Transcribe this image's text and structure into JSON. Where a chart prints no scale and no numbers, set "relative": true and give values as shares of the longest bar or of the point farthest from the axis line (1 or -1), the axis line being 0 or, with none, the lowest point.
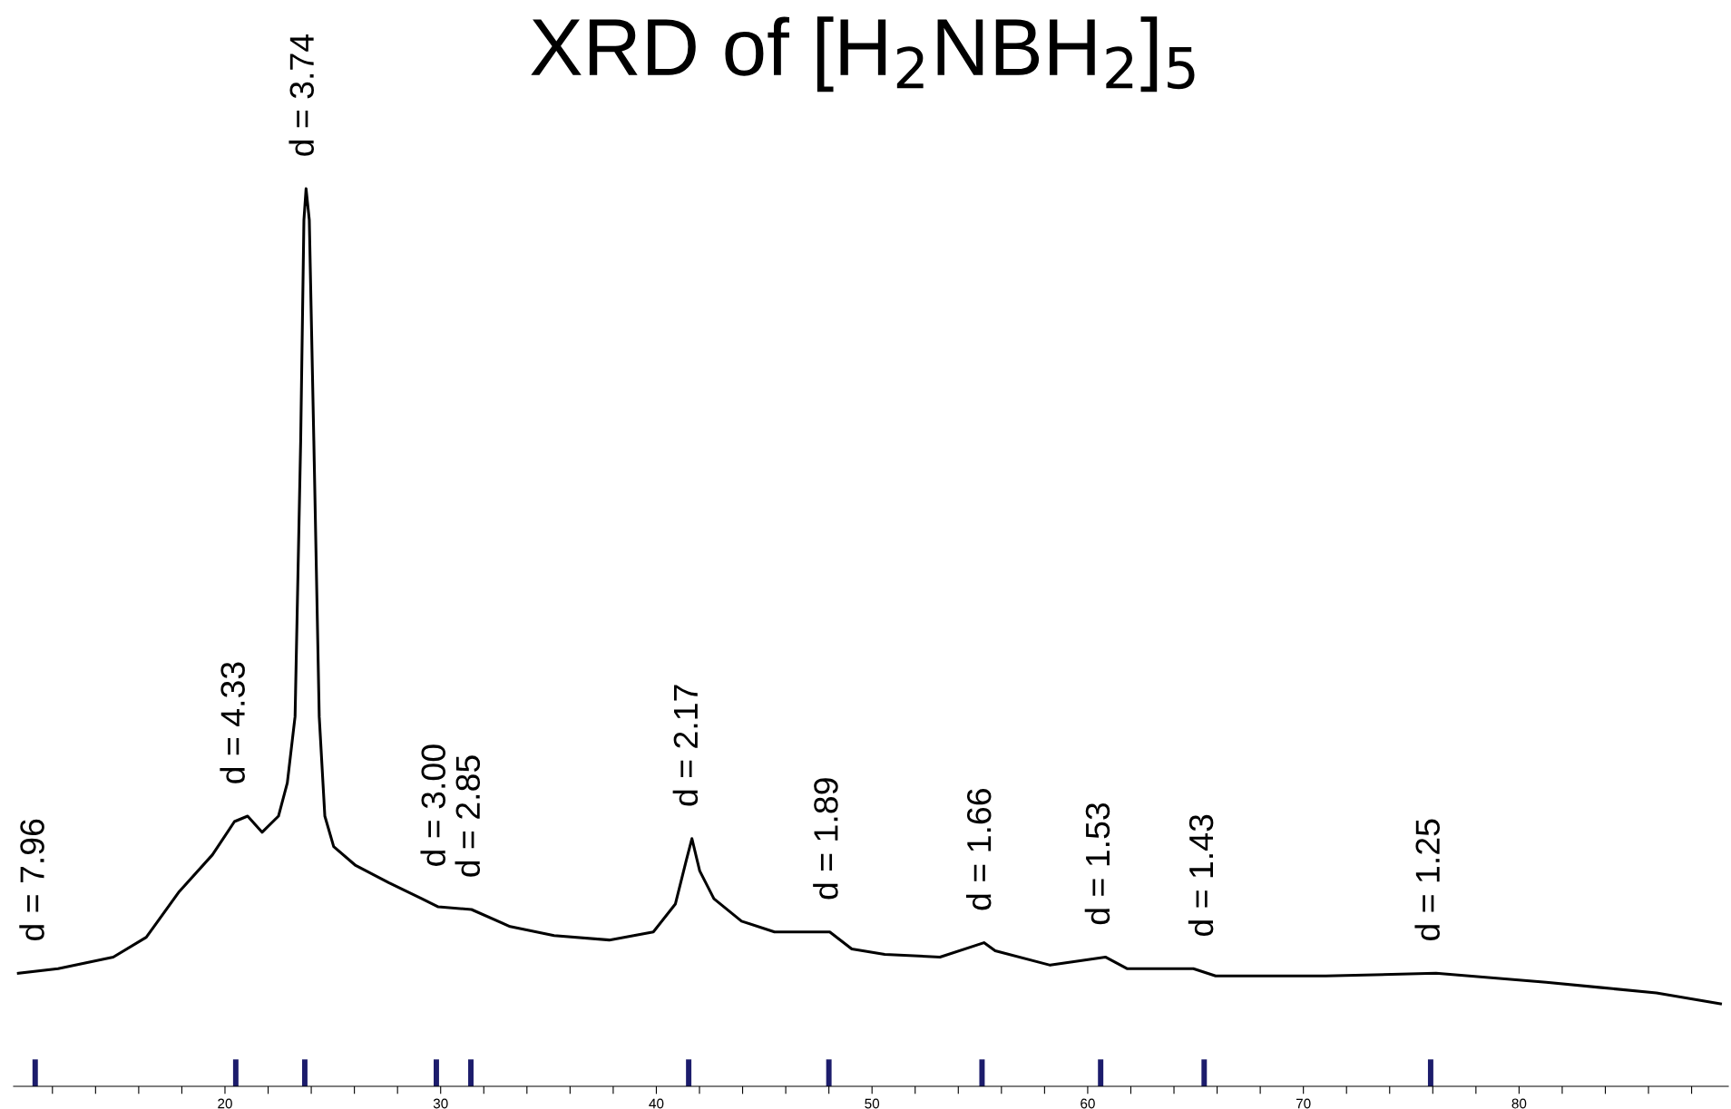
{
  "chart_data": {
    "type": "line",
    "relative": true,
    "title": "XRD of [H$_{2}$NBH$_{2}$]$_{5}$",
    "x": [
      10.42,
      12.26,
      14.82,
      16.35,
      17.88,
      19.42,
      20.44,
      21.05,
      21.72,
      22.48,
      22.89,
      23.25,
      23.51,
      23.66,
      23.76,
      23.91,
      24.12,
      24.37,
      24.63,
      25.04,
      26.06,
      27.59,
      29.13,
      29.89,
      31.43,
      33.22,
      35.26,
      37.82,
      39.86,
      40.88,
      41.39,
      41.65,
      42.01,
      42.67,
      43.95,
      45.48,
      48.04,
      49.06,
      50.59,
      53.15,
      55.19,
      55.71,
      58.26,
      60.82,
      61.84,
      64.9,
      65.93,
      71.04,
      76.15,
      81.26,
      83.82,
      86.37,
      89.34
    ],
    "series": [
      {
        "color": "#000000",
        "values": [
          0.126,
          0.131,
          0.144,
          0.166,
          0.217,
          0.258,
          0.295,
          0.301,
          0.283,
          0.301,
          0.338,
          0.412,
          0.719,
          0.965,
          1.0,
          0.965,
          0.719,
          0.412,
          0.301,
          0.267,
          0.246,
          0.227,
          0.209,
          0.2,
          0.197,
          0.178,
          0.168,
          0.163,
          0.172,
          0.203,
          0.252,
          0.276,
          0.24,
          0.209,
          0.184,
          0.172,
          0.172,
          0.153,
          0.147,
          0.144,
          0.16,
          0.151,
          0.135,
          0.144,
          0.131,
          0.131,
          0.123,
          0.123,
          0.126,
          0.116,
          0.11,
          0.104,
          0.092
        ]
      },
      {
        "type": "bar",
        "color": "#1c1c6c",
        "x": [
          11.2,
          20.5,
          23.7,
          29.8,
          31.4,
          41.5,
          48.0,
          55.1,
          60.6,
          65.4,
          75.9
        ],
        "values": [
          0.03,
          0.03,
          0.03,
          0.03,
          0.03,
          0.03,
          0.03,
          0.03,
          0.03,
          0.03,
          0.03
        ]
      }
    ],
    "xlim": [
      10.2,
      89.7
    ],
    "xticks": [
      {
        "value": 12,
        "label": null
      },
      {
        "value": 14,
        "label": null
      },
      {
        "value": 16,
        "label": null
      },
      {
        "value": 18,
        "label": null
      },
      20,
      {
        "value": 22,
        "label": null
      },
      {
        "value": 24,
        "label": null
      },
      {
        "value": 26,
        "label": null
      },
      {
        "value": 28,
        "label": null
      },
      30,
      {
        "value": 32,
        "label": null
      },
      {
        "value": 34,
        "label": null
      },
      {
        "value": 36,
        "label": null
      },
      {
        "value": 38,
        "label": null
      },
      40,
      {
        "value": 42,
        "label": null
      },
      {
        "value": 44,
        "label": null
      },
      {
        "value": 46,
        "label": null
      },
      {
        "value": 48,
        "label": null
      },
      50,
      {
        "value": 52,
        "label": null
      },
      {
        "value": 54,
        "label": null
      },
      {
        "value": 56,
        "label": null
      },
      {
        "value": 58,
        "label": null
      },
      60,
      {
        "value": 62,
        "label": null
      },
      {
        "value": 64,
        "label": null
      },
      {
        "value": 66,
        "label": null
      },
      {
        "value": 68,
        "label": null
      },
      70,
      {
        "value": 72,
        "label": null
      },
      {
        "value": 74,
        "label": null
      },
      {
        "value": 76,
        "label": null
      },
      {
        "value": 78,
        "label": null
      },
      80,
      {
        "value": 82,
        "label": null
      },
      {
        "value": 84,
        "label": null
      },
      {
        "value": 86,
        "label": null
      },
      {
        "value": 88,
        "label": null
      }
    ],
    "annotations": [
      "d = 7.96",
      "d = 4.33",
      "d = 3.74",
      "d = 3.00",
      "d = 2.85",
      "d = 2.17",
      "d = 1.89",
      "d = 1.66",
      "d = 1.53",
      "d = 1.43",
      "d = 1.25"
    ],
    "grid": false,
    "legend": false,
    "marker": "none",
    "line_style": "solid"
  }
}
